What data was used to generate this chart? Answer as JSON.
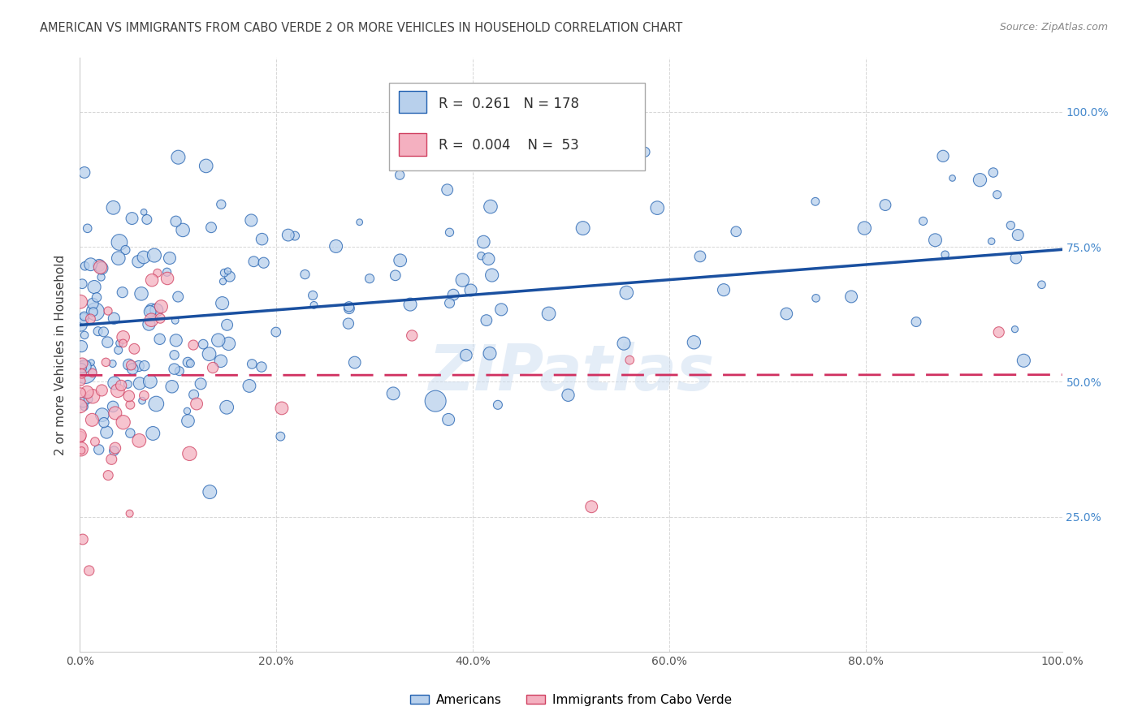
{
  "title": "AMERICAN VS IMMIGRANTS FROM CABO VERDE 2 OR MORE VEHICLES IN HOUSEHOLD CORRELATION CHART",
  "source": "Source: ZipAtlas.com",
  "ylabel": "2 or more Vehicles in Household",
  "legend_blue_R": "0.261",
  "legend_blue_N": "178",
  "legend_pink_R": "0.004",
  "legend_pink_N": "53",
  "blue_fill": "#b8d0ec",
  "blue_edge": "#2060b0",
  "pink_fill": "#f4b0c0",
  "pink_edge": "#d04060",
  "blue_line": "#1a50a0",
  "pink_line": "#d03060",
  "background_color": "#ffffff",
  "grid_color": "#cccccc",
  "title_color": "#404040",
  "right_tick_color": "#4488cc",
  "watermark": "ZIPatlas",
  "seed_blue": 12,
  "seed_pink": 99,
  "n_blue": 178,
  "n_pink": 53
}
